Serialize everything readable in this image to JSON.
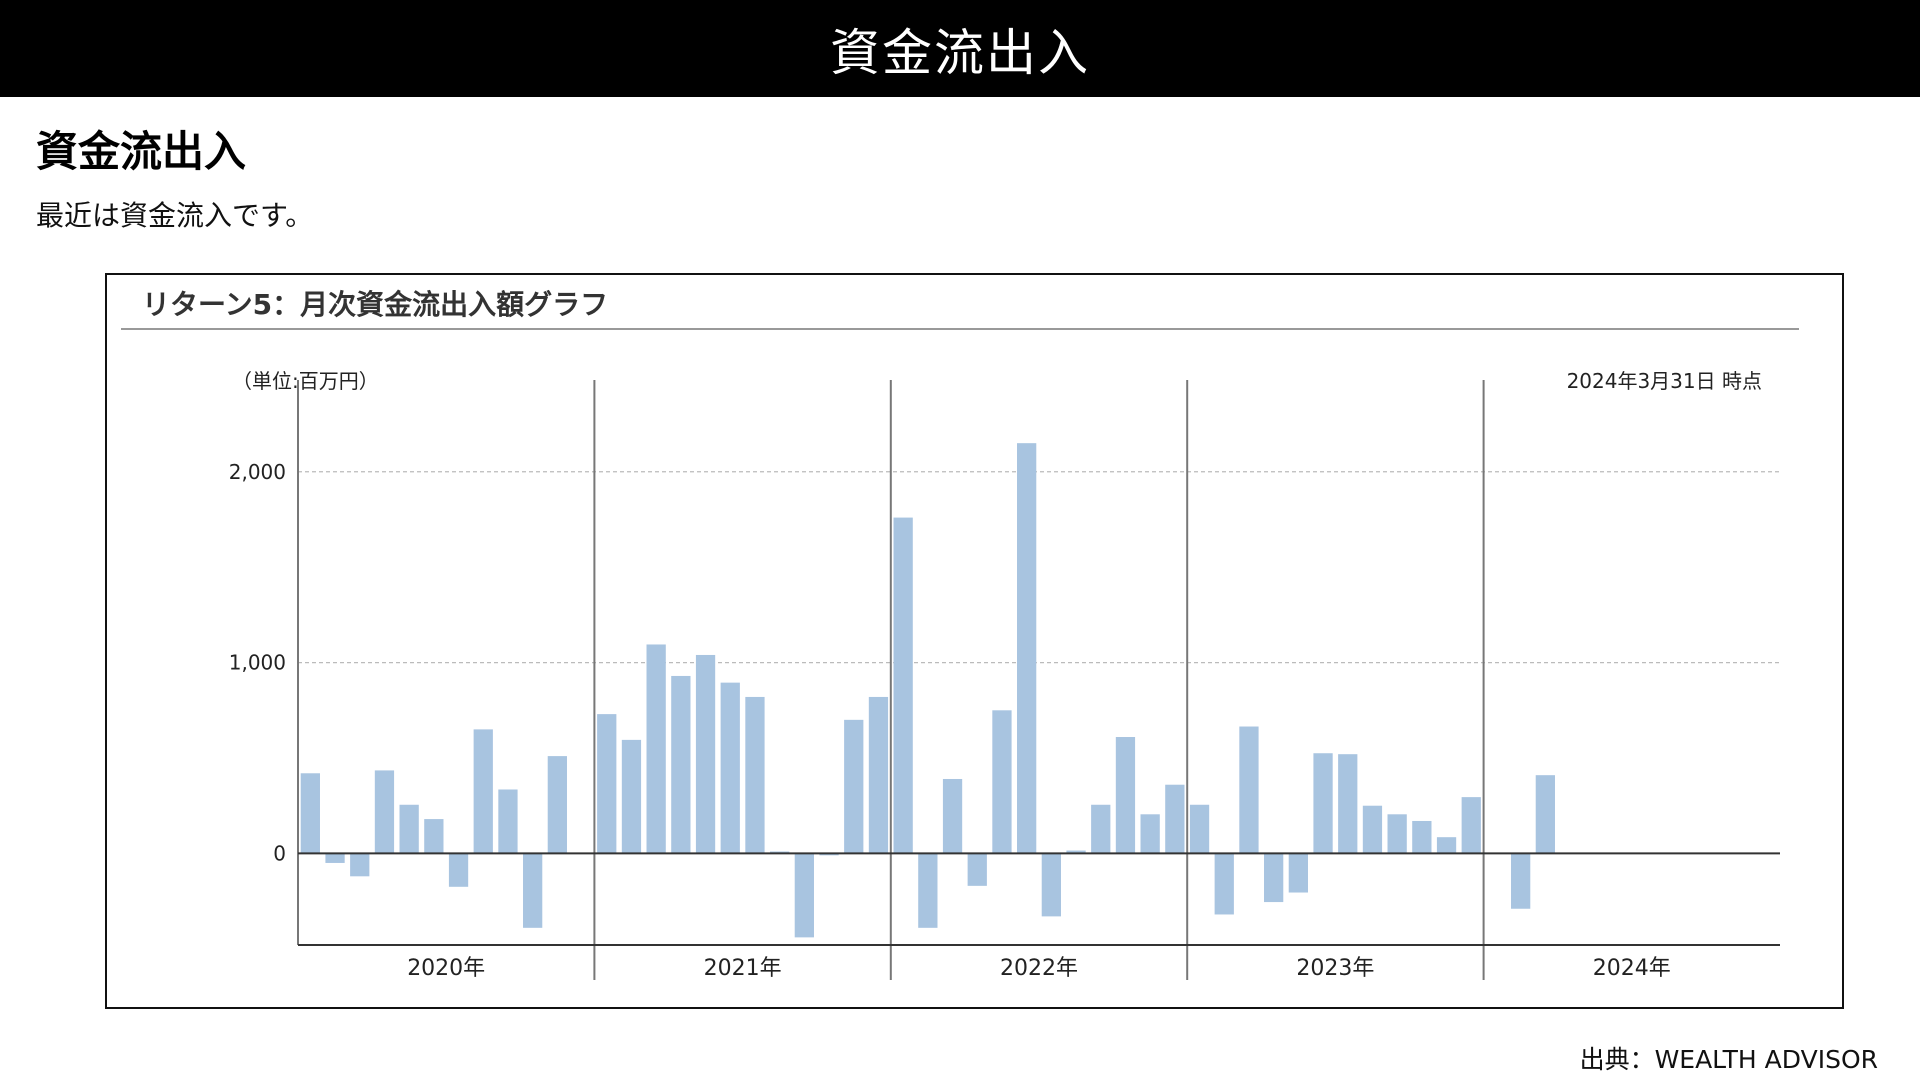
{
  "header": {
    "title": "資金流出入"
  },
  "section": {
    "title": "資金流出入",
    "description": "最近は資金流入です。"
  },
  "chart": {
    "title": "リターン5：月次資金流出入額グラフ",
    "unit_label": "（単位:百万円）",
    "as_of": "2024年3月31日 時点"
  },
  "source": "出典：WEALTH ADVISOR",
  "colors": {
    "bar": "#a8c4e0",
    "header_bg": "#000000"
  },
  "chart_data": {
    "type": "bar",
    "ylim": [
      -480,
      2350
    ],
    "yticks": [
      0,
      1000,
      2000
    ],
    "ytick_labels": [
      "0",
      "1,000",
      "2,000"
    ],
    "grid": true,
    "year_labels": [
      "2020年",
      "2021年",
      "2022年",
      "2023年",
      "2024年"
    ],
    "series": [
      {
        "values": [
          420,
          -50,
          -120,
          435,
          255,
          180,
          -175,
          650,
          335,
          -390,
          510,
          null,
          730,
          595,
          1095,
          930,
          1040,
          895,
          820,
          10,
          -440,
          -10,
          700,
          820,
          1760,
          -390,
          390,
          -170,
          750,
          2150,
          -330,
          15,
          255,
          610,
          205,
          360,
          255,
          -320,
          665,
          -255,
          -205,
          525,
          520,
          250,
          205,
          170,
          85,
          295,
          null,
          -290,
          410
        ]
      }
    ]
  }
}
